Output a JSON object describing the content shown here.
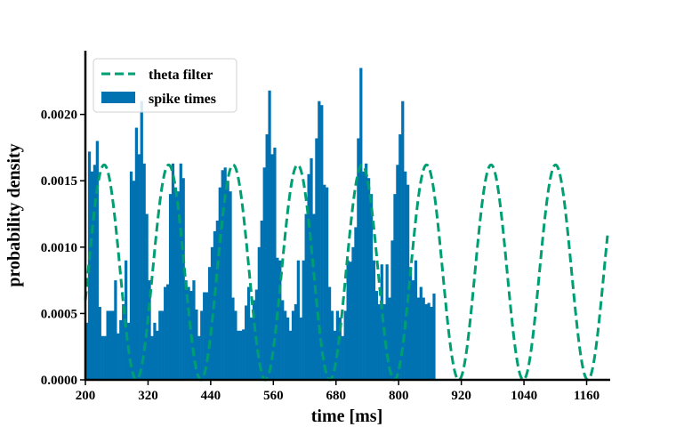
{
  "chart_data": {
    "type": "bar",
    "title": "",
    "xlabel": "time [ms]",
    "ylabel": "probability density",
    "xlim": [
      200,
      1200
    ],
    "ylim": [
      0,
      0.00248
    ],
    "grid": false,
    "legend_position": "top-left",
    "x_ticks": [
      200,
      320,
      440,
      560,
      680,
      800,
      920,
      1040,
      1160
    ],
    "x_tick_labels": [
      "200",
      "320",
      "440",
      "560",
      "680",
      "800",
      "920",
      "1040",
      "1160"
    ],
    "y_ticks": [
      0,
      0.0005,
      0.001,
      0.0015,
      0.002
    ],
    "y_tick_labels": [
      "0.0000",
      "0.0005",
      "0.0010",
      "0.0015",
      "0.0020"
    ],
    "bin_width_ms": 5,
    "series": [
      {
        "name": "spike times",
        "kind": "histogram",
        "color": "#0072b2",
        "bin_start_ms": 200,
        "values": [
          0.00043,
          0.00172,
          0.00157,
          0.00162,
          0.0018,
          0.00055,
          0.00033,
          0.00033,
          0.00052,
          0.00052,
          0.00052,
          0.00075,
          0.00035,
          0.00045,
          0.00057,
          0.0009,
          0.00043,
          0.00157,
          0.0015,
          0.0019,
          0.0017,
          0.0021,
          0.00163,
          0.00125,
          0.00075,
          0.00033,
          0.00043,
          0.00037,
          0.00052,
          0.00052,
          0.0007,
          0.00072,
          0.0014,
          0.00163,
          0.00145,
          0.00142,
          0.00163,
          0.00152,
          0.00075,
          0.0007,
          0.00067,
          0.00075,
          0.00053,
          0.00033,
          0.00052,
          0.00066,
          0.00066,
          0.00085,
          0.001,
          0.00112,
          0.0012,
          0.00145,
          0.00158,
          0.0016,
          0.0015,
          0.00142,
          0.00062,
          0.00052,
          0.00037,
          0.00037,
          0.00038,
          0.00056,
          0.0007,
          0.00047,
          0.0006,
          0.00068,
          0.001,
          0.0012,
          0.0016,
          0.00185,
          0.00218,
          0.0017,
          0.00175,
          0.00092,
          0.0009,
          0.0006,
          0.00052,
          0.00047,
          0.00037,
          0.00052,
          0.00057,
          0.0009,
          0.00047,
          0.0009,
          0.00125,
          0.00155,
          0.00167,
          0.00125,
          0.00182,
          0.0021,
          0.00207,
          0.00147,
          0.00145,
          0.0007,
          0.00052,
          0.00037,
          0.00052,
          0.00047,
          0.00033,
          0.00052,
          0.0009,
          0.00089,
          0.001,
          0.00115,
          0.00182,
          0.00235,
          0.00157,
          0.00163,
          0.00152,
          0.0014,
          0.0009,
          0.00067,
          0.00057,
          0.00087,
          0.00057,
          0.00087,
          0.00062,
          0.00105,
          0.0014,
          0.00162,
          0.00185,
          0.0021,
          0.00157,
          0.00147,
          0.00085,
          0.00075,
          0.0009,
          0.00062,
          0.0007,
          0.00062,
          0.00057,
          0.00058,
          0.00055,
          0.00065
        ]
      },
      {
        "name": "theta filter",
        "kind": "line",
        "style": "dashed",
        "color": "#009e73",
        "period_ms": 123.5,
        "peak_times_ms": [
          236,
          359,
          482,
          606,
          729,
          853,
          976,
          1100
        ],
        "offset": 0.00081,
        "amplitude": 0.00081
      }
    ]
  }
}
